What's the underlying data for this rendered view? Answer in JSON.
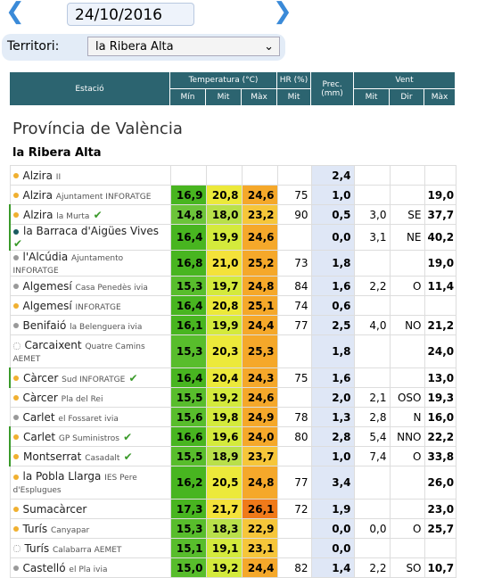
{
  "date": "24/10/2016",
  "filter": {
    "label": "Territori:",
    "value": "la Ribera Alta"
  },
  "header": {
    "station": "Estació",
    "temperature": "Temperatura (°C)",
    "hr": "HR (%)",
    "prec": "Prec. (mm)",
    "wind": "Vent",
    "sub": [
      "Mín",
      "Mit",
      "Màx",
      "Mit",
      "Mit",
      "Dir",
      "Màx"
    ]
  },
  "section": "Província de València",
  "region": "la Ribera Alta",
  "rows": [
    {
      "name": "Alzira",
      "sub": "II",
      "values": [
        null,
        null,
        null,
        null,
        "2,4",
        null,
        null,
        null
      ]
    },
    {
      "name": "Alzira",
      "sub": "Ajuntament INFORATGE",
      "values": [
        "16,9",
        "20,8",
        "24,6",
        "75",
        "1,0",
        null,
        null,
        "19,0"
      ]
    },
    {
      "name": "Alzira",
      "sub": "la Murta",
      "values": [
        "14,8",
        "18,0",
        "23,2",
        "90",
        "0,5",
        "3,0",
        "SE",
        "37,7"
      ]
    },
    {
      "name": "la Barraca d'Aigües Vives",
      "sub": null,
      "values": [
        "16,4",
        "19,9",
        "24,6",
        null,
        "0,0",
        "3,1",
        "NE",
        "40,2"
      ]
    },
    {
      "name": "l'Alcúdia",
      "sub": "Ajuntamento INFORATGE",
      "values": [
        "16,8",
        "21,0",
        "25,2",
        "73",
        "1,8",
        null,
        null,
        "19,0"
      ]
    },
    {
      "name": "Algemesí",
      "sub": "Casa Penedès ivia",
      "values": [
        "15,3",
        "19,7",
        "24,8",
        "84",
        "1,6",
        "2,2",
        "O",
        "11,4"
      ]
    },
    {
      "name": "Algemesí",
      "sub": "INFORATGE",
      "values": [
        "16,4",
        "20,8",
        "25,1",
        "74",
        "0,6",
        null,
        null,
        null
      ]
    },
    {
      "name": "Benifaió",
      "sub": "la Belenguera ivia",
      "values": [
        "16,1",
        "19,9",
        "24,4",
        "77",
        "2,5",
        "4,0",
        "NO",
        "21,2"
      ]
    },
    {
      "name": "Carcaixent",
      "sub": "Quatre Camins AEMET",
      "values": [
        "15,3",
        "20,3",
        "25,3",
        null,
        "1,8",
        null,
        null,
        "24,0"
      ]
    },
    {
      "name": "Càrcer",
      "sub": "Sud INFORATGE",
      "values": [
        "16,4",
        "20,4",
        "24,3",
        "75",
        "1,6",
        null,
        null,
        "13,0"
      ]
    },
    {
      "name": "Càrcer",
      "sub": "Pla del Rei",
      "values": [
        "15,5",
        "19,2",
        "24,6",
        null,
        "2,0",
        "2,1",
        "OSO",
        "19,3"
      ]
    },
    {
      "name": "Carlet",
      "sub": "el Fossaret ivia",
      "values": [
        "15,6",
        "19,8",
        "24,9",
        "78",
        "1,3",
        "2,8",
        "N",
        "16,0"
      ]
    },
    {
      "name": "Carlet",
      "sub": "GP Suministros",
      "values": [
        "16,6",
        "19,6",
        "24,0",
        "80",
        "2,8",
        "5,4",
        "NNO",
        "22,2"
      ]
    },
    {
      "name": "Montserrat",
      "sub": "Casadalt",
      "values": [
        "15,5",
        "18,9",
        "23,7",
        null,
        "1,0",
        "7,4",
        "O",
        "33,8"
      ]
    },
    {
      "name": "la Pobla Llarga",
      "sub": "IES Pere d'Esplugues",
      "values": [
        "16,2",
        "20,5",
        "24,8",
        "77",
        "3,4",
        null,
        null,
        "26,0"
      ]
    },
    {
      "name": "Sumacàrcer",
      "sub": null,
      "values": [
        "17,3",
        "21,7",
        "26,1",
        "72",
        "1,9",
        null,
        null,
        "23,0"
      ]
    },
    {
      "name": "Turís",
      "sub": "Canyapar",
      "values": [
        "15,3",
        "18,3",
        "22,9",
        null,
        "0,0",
        "0,0",
        "O",
        "25,7"
      ]
    },
    {
      "name": "Turís",
      "sub": "Calabarra AEMET",
      "values": [
        "15,1",
        "19,1",
        "23,1",
        null,
        "0,0",
        null,
        null,
        null
      ]
    },
    {
      "name": "Castelló",
      "sub": "el Pla ivia",
      "values": [
        "15,0",
        "19,2",
        "24,4",
        "82",
        "1,4",
        "2,2",
        "SO",
        "10,7"
      ]
    }
  ]
}
